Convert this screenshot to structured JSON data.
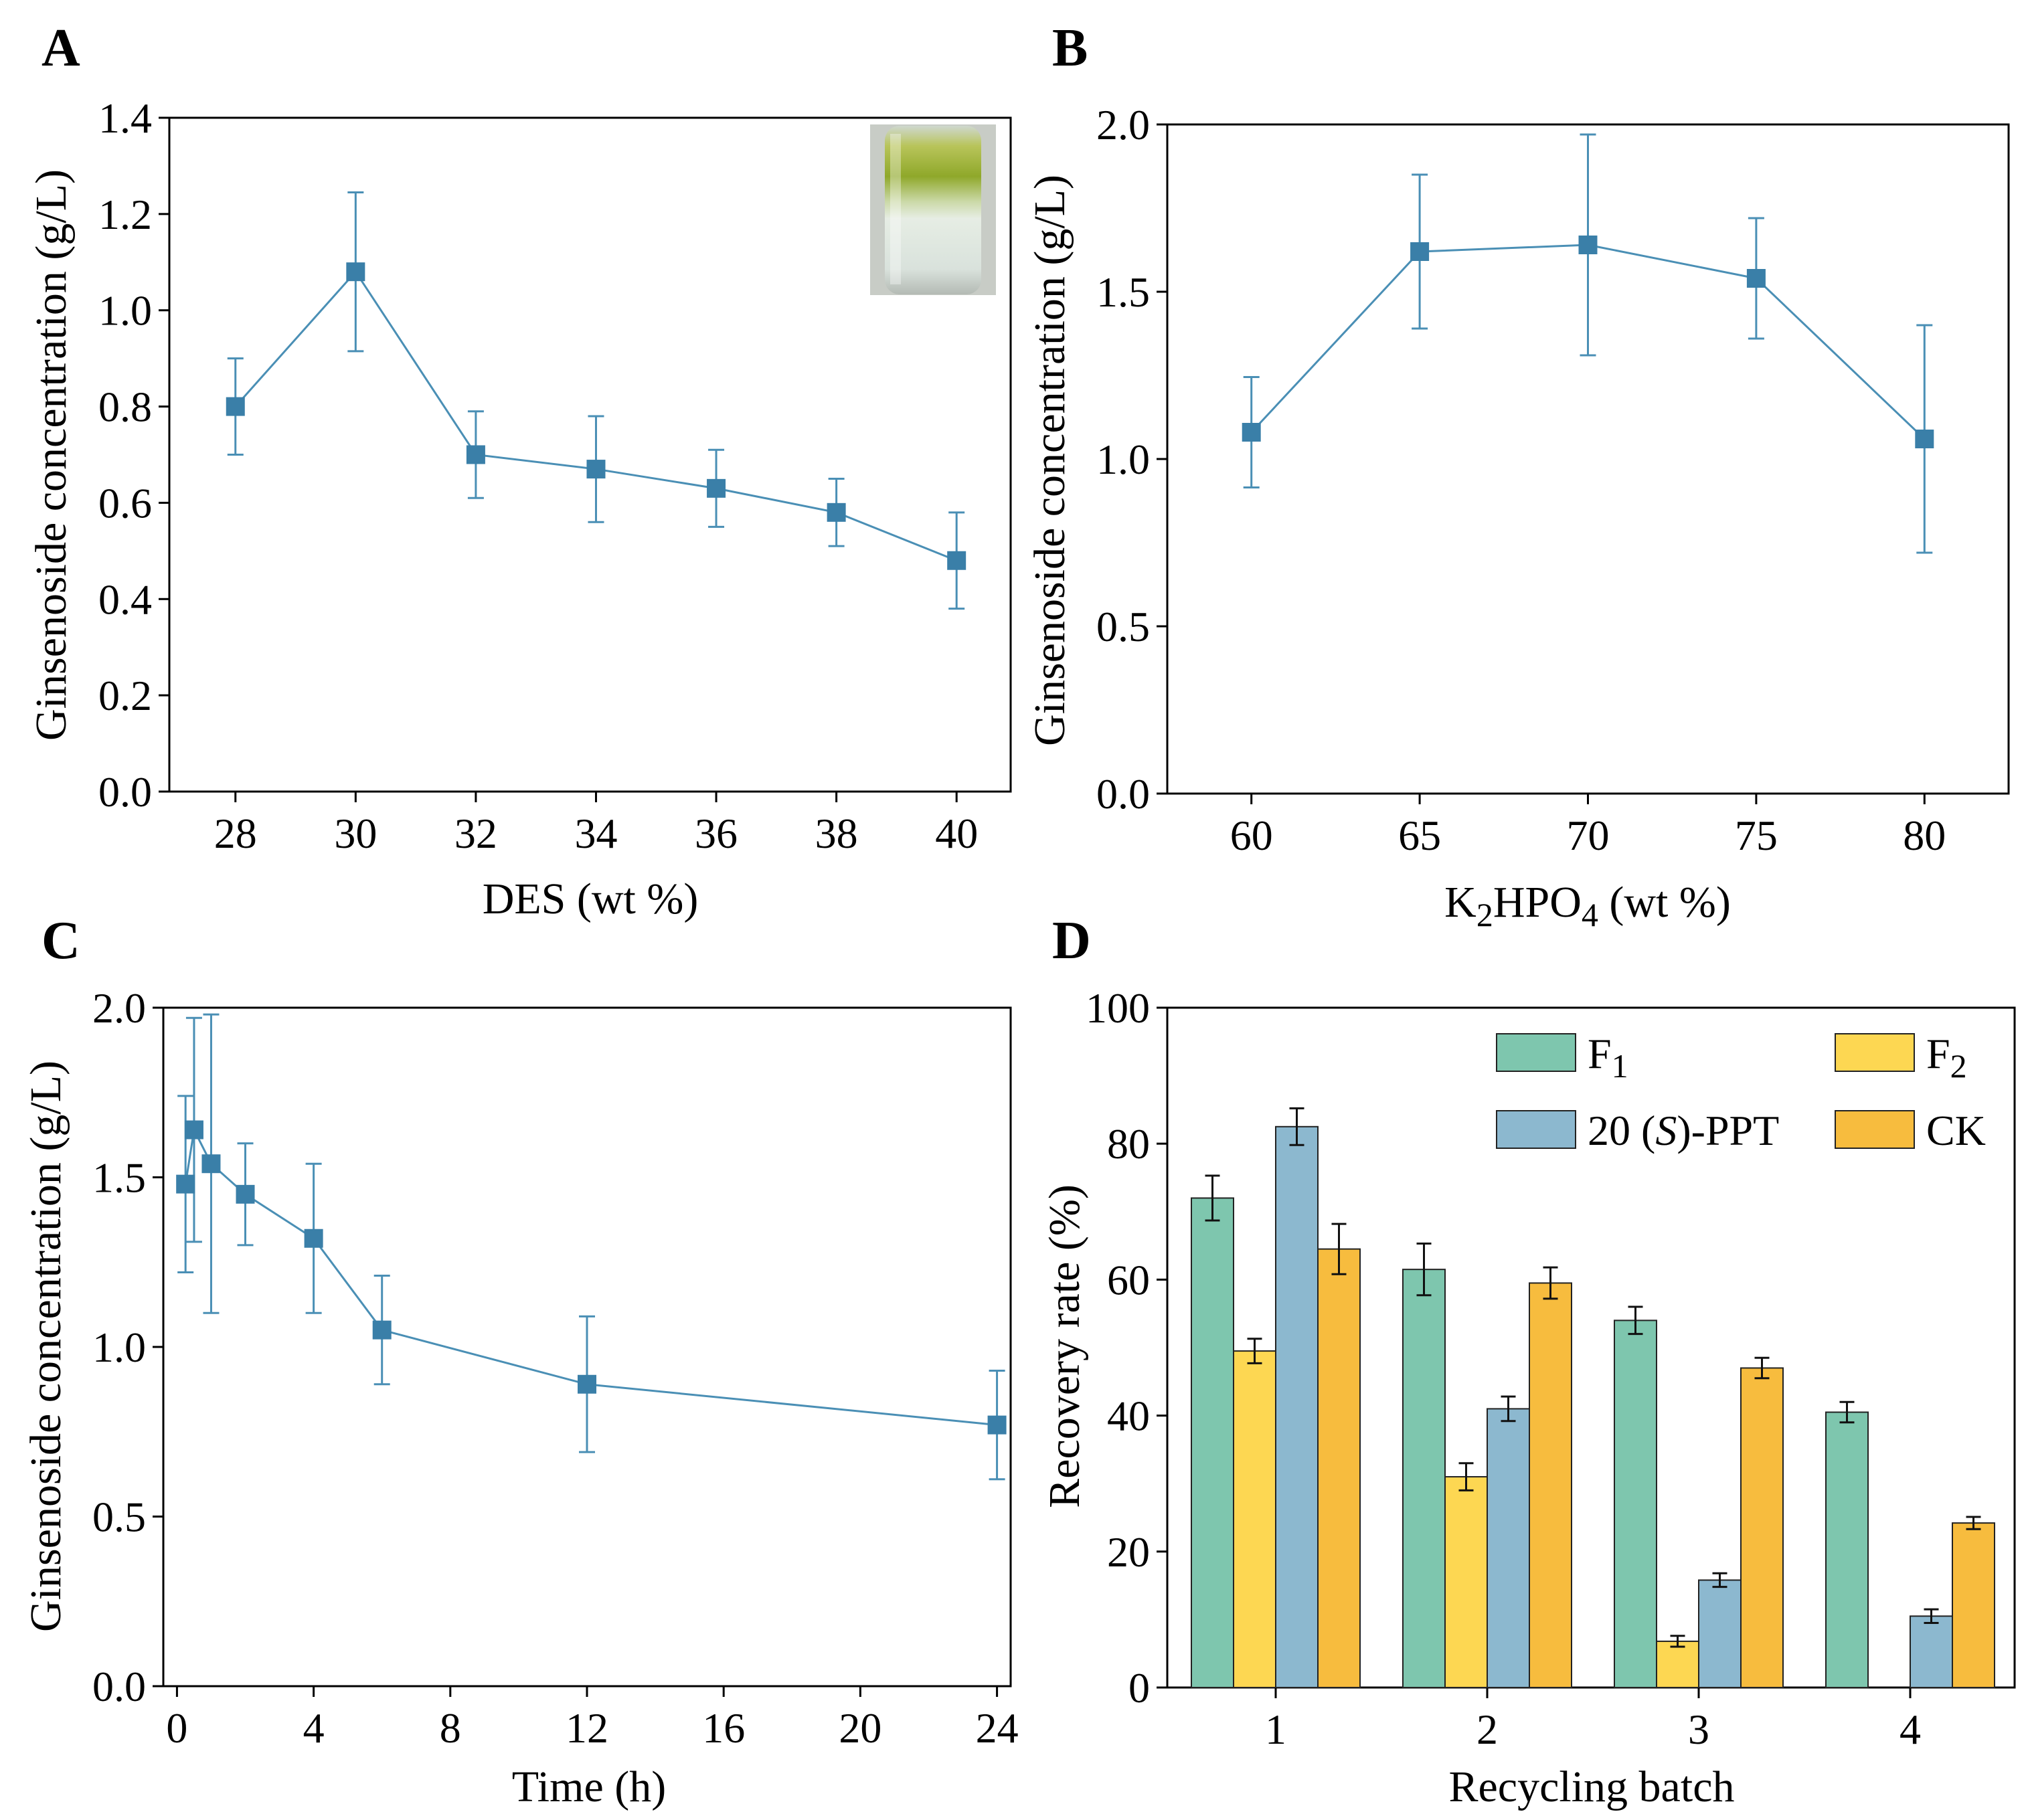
{
  "figure": {
    "colors": {
      "line": "#4a8fb5",
      "marker": "#3a7fa8",
      "F1": "#7ec6ae",
      "F2": "#fdd752",
      "PPT": "#8cb8cf",
      "CK": "#f7bc3e"
    }
  },
  "chart_data": [
    {
      "panel": "A",
      "type": "line",
      "x": [
        28,
        30,
        32,
        34,
        36,
        38,
        40
      ],
      "y": [
        0.8,
        1.08,
        0.7,
        0.67,
        0.63,
        0.58,
        0.48
      ],
      "err": [
        0.1,
        0.165,
        0.09,
        0.11,
        0.08,
        0.07,
        0.1
      ],
      "xlim": [
        26.9,
        40.9
      ],
      "ylim": [
        0,
        1.4
      ],
      "xticks": [
        "28",
        "30",
        "32",
        "34",
        "36",
        "38",
        "40"
      ],
      "yticks": [
        "0.0",
        "0.2",
        "0.4",
        "0.6",
        "0.8",
        "1.0",
        "1.2",
        "1.4"
      ],
      "xlabel": "DES (wt %)",
      "ylabel": "Ginsenoside concentration (g/L)",
      "inset": "photo-of-two-phase-system"
    },
    {
      "panel": "B",
      "type": "line",
      "x": [
        60,
        65,
        70,
        75,
        80
      ],
      "y": [
        1.08,
        1.62,
        1.64,
        1.54,
        1.06
      ],
      "err": [
        0.165,
        0.23,
        0.33,
        0.18,
        0.34
      ],
      "xlim": [
        57.5,
        82.5
      ],
      "ylim": [
        0,
        2.0
      ],
      "xticks": [
        "60",
        "65",
        "70",
        "75",
        "80"
      ],
      "yticks": [
        "0.0",
        "0.5",
        "1.0",
        "1.5",
        "2.0"
      ],
      "xlabel_main": "K",
      "xlabel_sub1": "2",
      "xlabel_mid": "HPO",
      "xlabel_sub2": "4",
      "xlabel_rest": " (wt %)",
      "ylabel": "Ginsenoside concentration (g/L)"
    },
    {
      "panel": "C",
      "type": "line",
      "x": [
        0.25,
        0.5,
        1,
        2,
        4,
        6,
        12,
        24
      ],
      "y": [
        1.48,
        1.64,
        1.54,
        1.45,
        1.32,
        1.05,
        0.89,
        0.77
      ],
      "err": [
        0.26,
        0.33,
        0.44,
        0.15,
        0.22,
        0.16,
        0.2,
        0.16
      ],
      "xlim": [
        -0.4,
        24.4
      ],
      "ylim": [
        0,
        2.0
      ],
      "xticks": [
        "0",
        "4",
        "8",
        "12",
        "16",
        "20",
        "24"
      ],
      "yticks": [
        "0.0",
        "0.5",
        "1.0",
        "1.5",
        "2.0"
      ],
      "xlabel": "Time (h)",
      "ylabel": "Ginsenoside concentration (g/L)"
    },
    {
      "panel": "D",
      "type": "bar",
      "categories": [
        "1",
        "2",
        "3",
        "4"
      ],
      "series": [
        {
          "name": "F",
          "sub": "1",
          "key": "F1",
          "values": [
            72,
            61.5,
            54,
            40.5
          ],
          "err": [
            3.3,
            3.8,
            2.0,
            1.5
          ]
        },
        {
          "name": "F",
          "sub": "2",
          "key": "F2",
          "values": [
            49.5,
            31,
            6.8,
            0
          ],
          "err": [
            1.8,
            2.0,
            0.8,
            0
          ]
        },
        {
          "name": "20 (S)-PPT",
          "key": "PPT",
          "values": [
            82.5,
            41,
            15.8,
            10.5
          ],
          "err": [
            2.7,
            1.8,
            1.0,
            1.0
          ]
        },
        {
          "name": "CK",
          "key": "CK",
          "values": [
            64.5,
            59.5,
            47,
            24.2
          ],
          "err": [
            3.7,
            2.3,
            1.5,
            0.9
          ]
        }
      ],
      "ylim": [
        0,
        100
      ],
      "yticks": [
        "0",
        "20",
        "40",
        "60",
        "80",
        "100"
      ],
      "xlabel": "Recycling batch",
      "ylabel": "Recovery rate (%)",
      "legend_ppt_prefix": "20 (",
      "legend_ppt_italic": "S",
      "legend_ppt_suffix": ")-PPT"
    }
  ]
}
